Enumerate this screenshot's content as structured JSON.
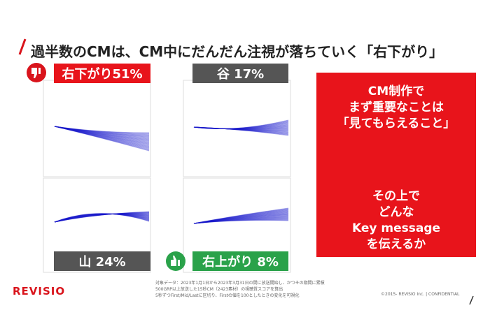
{
  "title": "過半数のCMは、CM中にだんだん注視が落ちていく「右下がり」",
  "panels": [
    {
      "label": "右下がり51%"
    },
    {
      "label": "谷 17%"
    },
    {
      "label": "山 24%"
    },
    {
      "label": "右上がり 8%"
    }
  ],
  "callout": {
    "top": [
      "CM制作で",
      "まず重要なことは",
      "「見てもらえること」"
    ],
    "bottom": [
      "その上で",
      "どんな",
      "Key message",
      "を伝えるか"
    ]
  },
  "footer": {
    "logo": "REVISIO",
    "notes": [
      "対象データ：2023年1月1日から2023年3月31日の間に放送開始し、かつその期間に累積",
      "500GRP以上放送した15秒CM（2423素材）の視聴質スコアを算出",
      "5秒ずつFirst/Mid/Lastに区切り、Firstの値を100としたときの変化を可視化"
    ],
    "copyright": "©2015- REVISIO Inc. | CONFIDENTIAL"
  }
}
